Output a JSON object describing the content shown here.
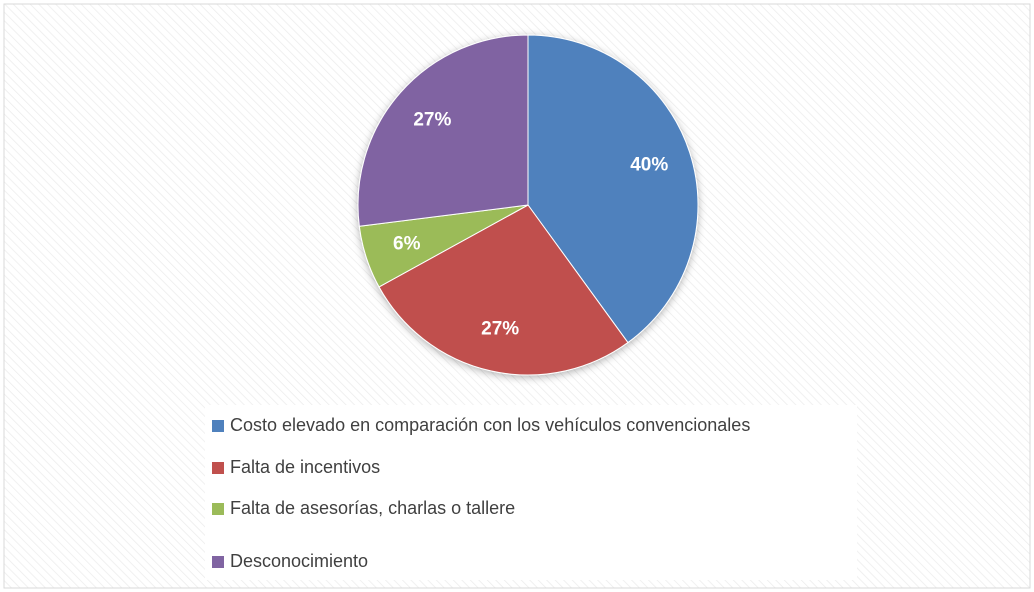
{
  "chart_data": {
    "type": "pie",
    "categories": [
      "Costo elevado en comparación con los vehículos convencionales",
      "Falta de incentivos",
      "Falta de asesorías, charlas o tallere",
      "Desconocimiento"
    ],
    "values": [
      40,
      27,
      6,
      27
    ],
    "value_labels": [
      "40%",
      "27%",
      "6%",
      "27%"
    ],
    "colors": [
      "#4f81bd",
      "#c0504d",
      "#9bbb59",
      "#8064a2"
    ],
    "legend": "bottom"
  }
}
